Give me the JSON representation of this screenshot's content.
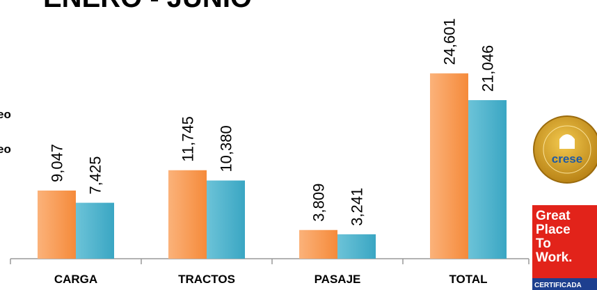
{
  "chart_data": {
    "type": "bar",
    "title": "ENERO - JUNIO",
    "categories": [
      "CARGA",
      "TRACTOS",
      "PASAJE",
      "TOTAL"
    ],
    "series": [
      {
        "name": "eo",
        "color": "#f79646",
        "values": [
          9047,
          11745,
          3809,
          24601
        ],
        "value_labels": [
          "9,047",
          "11,745",
          "3,809",
          "24,601"
        ]
      },
      {
        "name": "eo",
        "color": "#4bacc6",
        "values": [
          7425,
          10380,
          3241,
          21046
        ],
        "value_labels": [
          "7,425",
          "10,380",
          "3,241",
          "21,046"
        ]
      }
    ],
    "ylim": [
      0,
      30000
    ],
    "grid": false
  },
  "badges": {
    "crese": "crese",
    "gptw": [
      "Great",
      "Place",
      "To",
      "Work.",
      "CERTIFICADA"
    ]
  }
}
